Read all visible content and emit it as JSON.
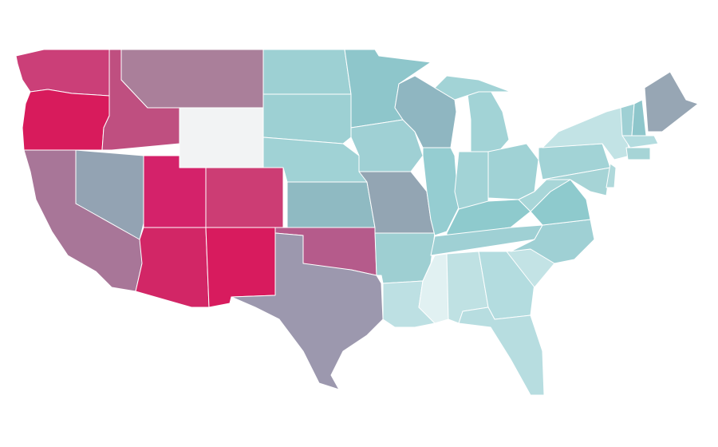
{
  "map": {
    "region_colors": [
      "#cb3f78",
      "#d81b5c",
      "#a87698",
      "#93a3b3",
      "#bf4f80",
      "#aa7f9a",
      "#f2f3f4",
      "#d4226a",
      "#cc3d74",
      "#d22666",
      "#d81b5e",
      "#9dd0d3",
      "#9dd0d3",
      "#a0d2d5",
      "#8fbac2",
      "#b55b8b",
      "#9c98ae",
      "#8ec6cb",
      "#9fd0d4",
      "#93a5b3",
      "#9ecfd2",
      "#bde0e3",
      "#8fb6c1",
      "#95cdd1",
      "#a2d3d6",
      "#a2d3d6",
      "#a2d3d6",
      "#a0d2d5",
      "#8ecacd",
      "#9fd0d4",
      "#e1f1f2",
      "#bfe1e3",
      "#b3dcdf",
      "#b7dde0",
      "#c3e3e5",
      "#9fd0d4",
      "#8ecacd",
      "#a8d6d8",
      "#a2d3d6",
      "#c2e3e5",
      "#a6d4d6",
      "#b0d9db",
      "#9fd0d4",
      "#8ec6cb",
      "#97a6b4",
      "#b3dcdf",
      "#a6d4d6"
    ]
  }
}
